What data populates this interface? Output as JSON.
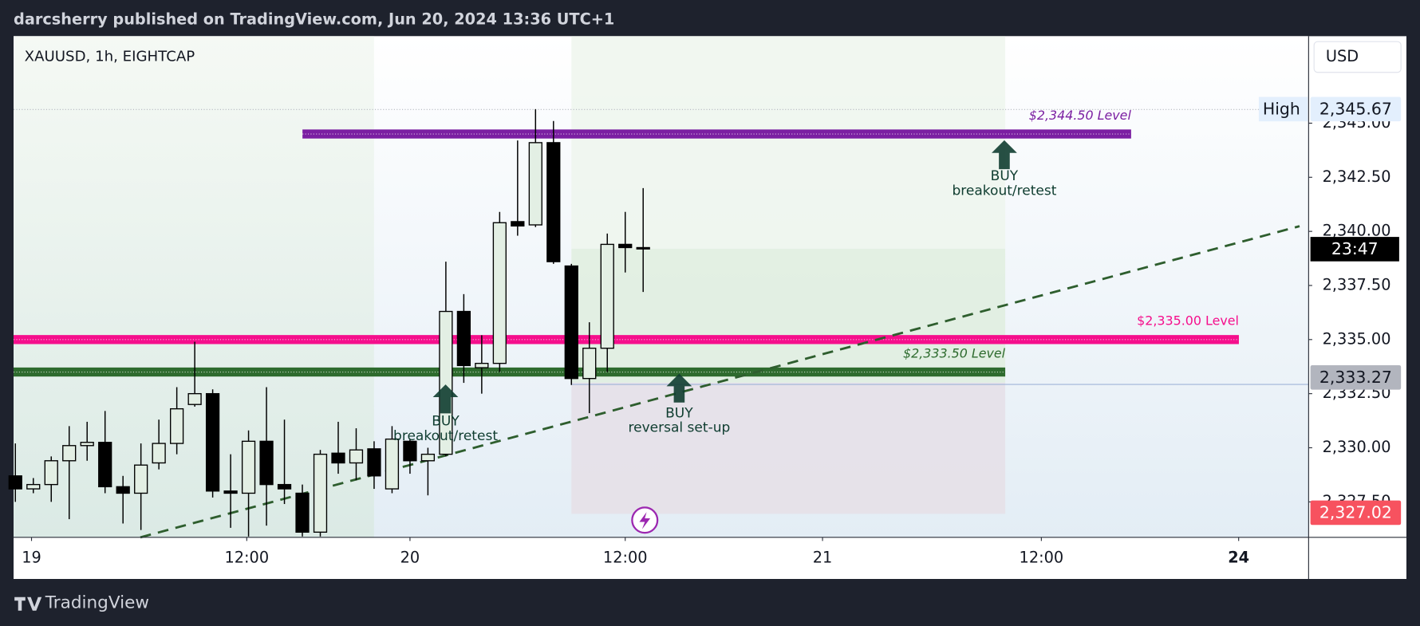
{
  "header": "darcsherry published on TradingView.com, Jun 20, 2024 13:36 UTC+1",
  "footer_brand": "TradingView",
  "chart_data": {
    "type": "candlestick",
    "symbol": "XAUUSD, 1h, EIGHTCAP",
    "currency": "USD",
    "open": [
      2328.7,
      2328.1,
      2328.3,
      2329.4,
      2330.1,
      2330.25,
      2328.2,
      2327.9,
      2329.3,
      2330.2,
      2332.0,
      2332.5,
      2328.0,
      2327.9,
      2330.3,
      2328.3,
      2327.9,
      2326.1,
      2329.75,
      2329.3,
      2329.95,
      2328.1,
      2330.3,
      2329.4,
      2329.7,
      2336.3,
      2333.7,
      2333.9,
      2340.45,
      2340.3,
      2344.1,
      2338.4,
      2333.2,
      2334.6,
      2339.4,
      2339.25
    ],
    "high": [
      2330.2,
      2328.6,
      2329.6,
      2331.0,
      2331.2,
      2331.7,
      2328.7,
      2330.2,
      2331.3,
      2332.8,
      2334.9,
      2332.7,
      2329.7,
      2330.8,
      2332.8,
      2331.3,
      2328.3,
      2329.9,
      2331.2,
      2330.9,
      2330.3,
      2331.0,
      2330.4,
      2330.0,
      2338.6,
      2337.1,
      2335.2,
      2340.9,
      2344.2,
      2345.65,
      2345.1,
      2338.5,
      2335.8,
      2339.9,
      2340.9,
      2342.0
    ],
    "low": [
      2327.5,
      2327.9,
      2327.5,
      2326.7,
      2329.4,
      2327.9,
      2326.5,
      2326.2,
      2329.0,
      2329.7,
      2331.9,
      2327.7,
      2326.3,
      2325.9,
      2326.4,
      2327.4,
      2325.9,
      2325.9,
      2328.8,
      2328.5,
      2328.1,
      2327.9,
      2328.8,
      2327.8,
      2329.6,
      2333.0,
      2332.5,
      2333.5,
      2339.8,
      2340.2,
      2338.5,
      2332.9,
      2331.6,
      2333.5,
      2338.1,
      2337.2
    ],
    "close": [
      2328.1,
      2328.3,
      2329.4,
      2330.1,
      2330.25,
      2328.2,
      2327.9,
      2329.2,
      2330.2,
      2331.8,
      2332.5,
      2328.0,
      2327.9,
      2330.3,
      2328.3,
      2328.1,
      2326.1,
      2329.7,
      2329.3,
      2329.9,
      2328.7,
      2330.4,
      2329.4,
      2329.7,
      2336.3,
      2333.8,
      2333.9,
      2340.4,
      2340.25,
      2344.1,
      2338.6,
      2333.2,
      2334.6,
      2339.4,
      2339.25,
      2339.2
    ],
    "up_color": "#e3efe4",
    "down_color": "#000000",
    "ylim": [
      2325.86,
      2349.02
    ],
    "yticks": [
      {
        "value": 2327.5,
        "label": "2,327.50"
      },
      {
        "value": 2330,
        "label": "2,330.00"
      },
      {
        "value": 2332.5,
        "label": "2,332.50"
      },
      {
        "value": 2335,
        "label": "2,335.00"
      },
      {
        "value": 2337.5,
        "label": "2,337.50"
      },
      {
        "value": 2340,
        "label": "2,340.00"
      },
      {
        "value": 2342.5,
        "label": "2,342.50"
      },
      {
        "value": 2345,
        "label": "2,345.00"
      }
    ],
    "xlim": [
      -0.1,
      72.1
    ],
    "xticks": [
      {
        "value": 0.9,
        "label": "19"
      },
      {
        "value": 12.9,
        "label": "12:00"
      },
      {
        "value": 22,
        "label": "20"
      },
      {
        "value": 34,
        "label": "12:00"
      },
      {
        "value": 45,
        "label": "21"
      },
      {
        "value": 57.2,
        "label": "12:00"
      },
      {
        "value": 68.2,
        "label": "24"
      }
    ],
    "levels": [
      {
        "label": "$2,344.50 Level",
        "value": 2344.5,
        "color": "#7b1fa2"
      },
      {
        "label": "$2,335.00 Level",
        "value": 2335,
        "color": "#f50f8c"
      },
      {
        "label": "$2,333.50 Level",
        "value": 2333.5,
        "color": "#2e6b2e"
      }
    ],
    "price_tags": [
      {
        "name": "High",
        "value": 2345.67,
        "label": "2,345.67",
        "background": "#e3effd"
      },
      {
        "value": 2333.27,
        "label": "2,333.27",
        "background": "#b2b5be"
      },
      {
        "value": 2327.02,
        "label": "2,327.02",
        "background": "#f7525f"
      }
    ],
    "countdown": "23:47",
    "annotations": [
      {
        "title": "BUY",
        "text": "breakout/retest"
      },
      {
        "title": "BUY",
        "text": "breakout/retest"
      },
      {
        "title": "BUY",
        "text": "reversal set-up"
      }
    ]
  }
}
